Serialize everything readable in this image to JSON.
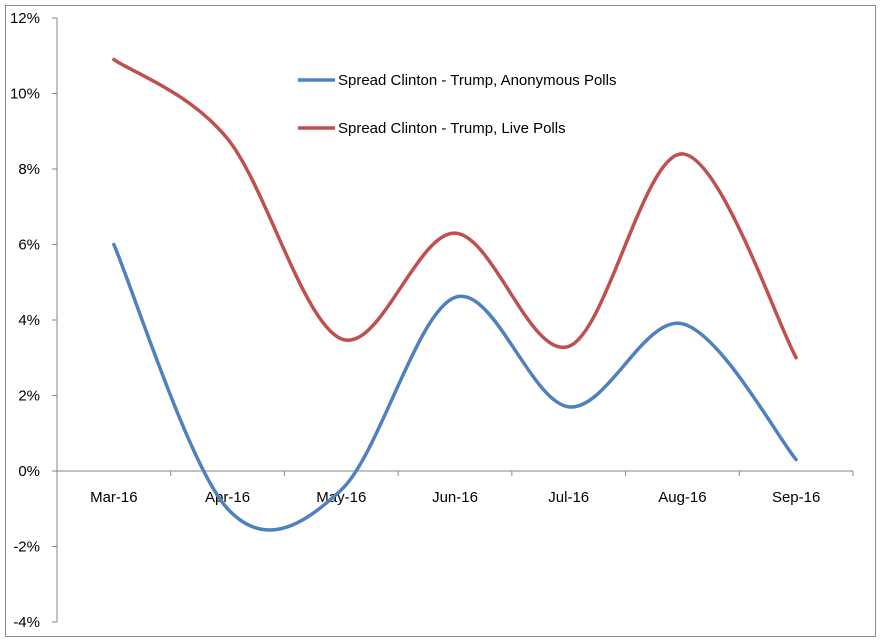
{
  "chart_data": {
    "type": "line",
    "smoothed": true,
    "categories": [
      "Mar-16",
      "Apr-16",
      "May-16",
      "Jun-16",
      "Jul-16",
      "Aug-16",
      "Sep-16"
    ],
    "series": [
      {
        "name": "Spread Clinton - Trump, Anonymous Polls",
        "color": "#4F81BD",
        "values": [
          6.0,
          -1.0,
          -0.5,
          4.6,
          1.7,
          3.9,
          0.3
        ]
      },
      {
        "name": "Spread Clinton - Trump, Live Polls",
        "color": "#C0504D",
        "values": [
          10.9,
          8.8,
          3.5,
          6.3,
          3.3,
          8.4,
          3.0
        ]
      }
    ],
    "ylim": [
      -4,
      12
    ],
    "ytick_values": [
      -4,
      -2,
      0,
      2,
      4,
      6,
      8,
      10,
      12
    ],
    "ytick_labels": [
      "-4%",
      "-2%",
      "0%",
      "2%",
      "4%",
      "6%",
      "8%",
      "10%",
      "12%"
    ],
    "title": "",
    "xlabel": "",
    "ylabel": "",
    "grid": false,
    "legend_position": "top-center"
  }
}
